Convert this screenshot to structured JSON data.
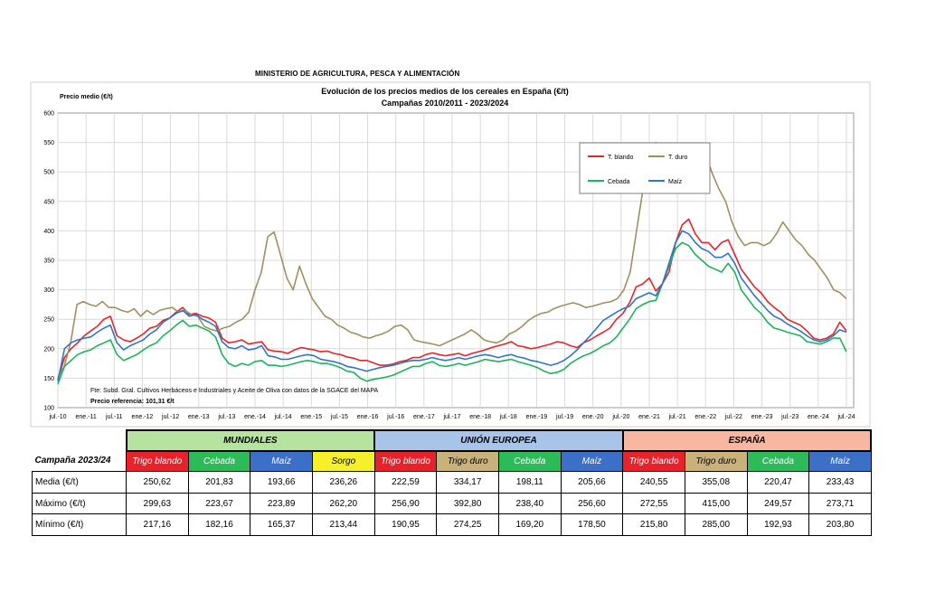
{
  "header": {
    "ministry": "MINISTERIO DE AGRICULTURA, PESCA Y ALIMENTACIÓN"
  },
  "chart_data": {
    "type": "line",
    "title": "Evolución de los precios medios de los cereales en España (€/t)",
    "subtitle": "Campañas 2010/2011 - 2023/2024",
    "ylabel": "Precio medio (€/t)",
    "ylim": [
      100,
      600
    ],
    "yticks": [
      100,
      150,
      200,
      250,
      300,
      350,
      400,
      450,
      500,
      550,
      600
    ],
    "xticks": [
      "jul.-10",
      "ene.-11",
      "jul.-11",
      "ene.-12",
      "jul.-12",
      "ene.-13",
      "jul.-13",
      "ene.-14",
      "jul.-14",
      "ene.-15",
      "jul.-15",
      "ene.-16",
      "jul.-16",
      "ene.-17",
      "jul.-17",
      "ene.-18",
      "jul.-18",
      "ene.-19",
      "jul.-19",
      "ene.-20",
      "jul.-20",
      "ene.-21",
      "jul.-21",
      "ene.-22",
      "jul.-22",
      "ene.-23",
      "jul.-23",
      "ene.-24",
      "jul.-24"
    ],
    "grid": true,
    "legend": "top-right",
    "source_note": "Fte: Subd. Gral. Cultivos Herbáceos e Industriales y Aceite de Oliva con datos de la SGACE del MAPA",
    "reference_note": "Precio referencia: 101,31 €/t",
    "series": [
      {
        "name": "T. blando",
        "color": "#e3262a",
        "values": [
          148,
          185,
          200,
          210,
          222,
          230,
          238,
          250,
          255,
          222,
          215,
          212,
          218,
          225,
          235,
          238,
          248,
          252,
          262,
          270,
          258,
          260,
          255,
          252,
          245,
          218,
          210,
          212,
          215,
          208,
          210,
          212,
          198,
          196,
          195,
          192,
          198,
          202,
          200,
          198,
          195,
          196,
          192,
          190,
          186,
          184,
          180,
          180,
          176,
          172,
          172,
          174,
          178,
          180,
          185,
          185,
          190,
          193,
          190,
          188,
          190,
          192,
          188,
          192,
          195,
          198,
          202,
          205,
          208,
          212,
          205,
          203,
          200,
          202,
          205,
          208,
          212,
          210,
          205,
          202,
          210,
          215,
          222,
          228,
          235,
          250,
          260,
          278,
          305,
          310,
          320,
          298,
          310,
          330,
          380,
          410,
          420,
          395,
          380,
          380,
          368,
          380,
          385,
          360,
          335,
          320,
          305,
          295,
          280,
          270,
          262,
          250,
          245,
          240,
          230,
          218,
          215,
          218,
          225,
          245,
          230
        ]
      },
      {
        "name": "T. duro",
        "color": "#a09060",
        "values": [
          150,
          170,
          210,
          275,
          280,
          275,
          272,
          280,
          270,
          270,
          265,
          262,
          268,
          255,
          265,
          258,
          265,
          268,
          270,
          262,
          265,
          258,
          255,
          238,
          233,
          230,
          235,
          238,
          245,
          250,
          262,
          300,
          330,
          390,
          398,
          360,
          320,
          300,
          340,
          310,
          285,
          270,
          255,
          250,
          240,
          235,
          228,
          225,
          220,
          218,
          222,
          225,
          230,
          238,
          240,
          232,
          215,
          212,
          210,
          208,
          205,
          210,
          215,
          220,
          225,
          232,
          225,
          215,
          212,
          210,
          215,
          225,
          230,
          238,
          248,
          255,
          260,
          262,
          268,
          272,
          275,
          278,
          275,
          270,
          272,
          275,
          278,
          280,
          285,
          300,
          330,
          400,
          470,
          540,
          550,
          540,
          530,
          520,
          515,
          518,
          528,
          535,
          525,
          495,
          470,
          450,
          415,
          390,
          375,
          380,
          380,
          375,
          380,
          395,
          415,
          400,
          385,
          375,
          360,
          350,
          335,
          320,
          300,
          295,
          285
        ]
      },
      {
        "name": "Cebada",
        "color": "#1db35a",
        "values": [
          140,
          170,
          180,
          190,
          195,
          198,
          205,
          210,
          215,
          190,
          180,
          185,
          190,
          198,
          205,
          210,
          222,
          230,
          240,
          248,
          238,
          240,
          235,
          230,
          220,
          190,
          175,
          170,
          175,
          172,
          178,
          180,
          172,
          172,
          170,
          172,
          175,
          178,
          180,
          178,
          175,
          175,
          172,
          168,
          162,
          160,
          150,
          145,
          148,
          150,
          152,
          155,
          160,
          165,
          170,
          170,
          175,
          178,
          172,
          170,
          172,
          175,
          172,
          175,
          178,
          182,
          180,
          178,
          180,
          182,
          178,
          175,
          172,
          168,
          162,
          158,
          160,
          165,
          175,
          182,
          188,
          192,
          198,
          205,
          210,
          220,
          235,
          250,
          268,
          275,
          280,
          282,
          310,
          340,
          370,
          380,
          375,
          360,
          350,
          340,
          335,
          330,
          345,
          330,
          300,
          285,
          270,
          260,
          245,
          235,
          232,
          228,
          225,
          222,
          212,
          210,
          208,
          212,
          218,
          218,
          195
        ]
      },
      {
        "name": "Maíz",
        "color": "#2f76c8",
        "values": [
          145,
          200,
          210,
          215,
          218,
          220,
          228,
          235,
          240,
          210,
          198,
          205,
          210,
          215,
          225,
          232,
          245,
          252,
          260,
          265,
          255,
          258,
          250,
          245,
          238,
          212,
          202,
          200,
          205,
          198,
          200,
          205,
          188,
          186,
          182,
          182,
          185,
          188,
          190,
          188,
          182,
          180,
          178,
          175,
          170,
          168,
          165,
          162,
          165,
          168,
          170,
          172,
          175,
          178,
          180,
          180,
          182,
          185,
          182,
          180,
          182,
          185,
          182,
          185,
          188,
          190,
          188,
          185,
          188,
          190,
          186,
          184,
          180,
          178,
          175,
          172,
          175,
          180,
          188,
          198,
          210,
          222,
          235,
          248,
          255,
          262,
          268,
          272,
          285,
          290,
          295,
          290,
          310,
          345,
          380,
          400,
          395,
          380,
          370,
          365,
          355,
          355,
          362,
          345,
          320,
          305,
          290,
          278,
          265,
          255,
          250,
          242,
          236,
          230,
          222,
          215,
          212,
          215,
          222,
          232,
          228
        ]
      }
    ]
  },
  "table": {
    "campaign_label": "Campaña 2023/24",
    "groups": [
      {
        "label": "MUNDIALES",
        "color": "#b7e3a0"
      },
      {
        "label": "UNIÓN EUROPEA",
        "color": "#a8c4e8"
      },
      {
        "label": "ESPAÑA",
        "color": "#f7b7a0"
      }
    ],
    "columns": [
      {
        "label": "Trigo blando",
        "color": "#e8222a",
        "text": "#ffffff"
      },
      {
        "label": "Cebada",
        "color": "#2dbb5a",
        "text": "#ffffff"
      },
      {
        "label": "Maíz",
        "color": "#3b6fc8",
        "text": "#ffffff"
      },
      {
        "label": "Sorgo",
        "color": "#f5f02a",
        "text": "#000000"
      },
      {
        "label": "Trigo blando",
        "color": "#e8222a",
        "text": "#ffffff"
      },
      {
        "label": "Trigo duro",
        "color": "#c9b27a",
        "text": "#000000"
      },
      {
        "label": "Cebada",
        "color": "#2dbb5a",
        "text": "#ffffff"
      },
      {
        "label": "Maíz",
        "color": "#3b6fc8",
        "text": "#ffffff"
      },
      {
        "label": "Trigo blando",
        "color": "#e8222a",
        "text": "#ffffff"
      },
      {
        "label": "Trigo duro",
        "color": "#c9b27a",
        "text": "#000000"
      },
      {
        "label": "Cebada",
        "color": "#2dbb5a",
        "text": "#ffffff"
      },
      {
        "label": "Maíz",
        "color": "#3b6fc8",
        "text": "#ffffff"
      }
    ],
    "rows": [
      {
        "label": "Media (€/t)",
        "values": [
          "250,62",
          "201,83",
          "193,66",
          "236,26",
          "222,59",
          "334,17",
          "198,11",
          "205,66",
          "240,55",
          "355,08",
          "220,47",
          "233,43"
        ]
      },
      {
        "label": "Máximo (€/t)",
        "values": [
          "299,63",
          "223,67",
          "223,89",
          "262,20",
          "256,90",
          "392,80",
          "238,40",
          "256,60",
          "272,55",
          "415,00",
          "249,57",
          "273,71"
        ]
      },
      {
        "label": "Mínimo (€/t)",
        "values": [
          "217,16",
          "182,16",
          "165,37",
          "213,44",
          "190,95",
          "274,25",
          "169,20",
          "178,50",
          "215,80",
          "285,00",
          "192,93",
          "203,80"
        ]
      }
    ]
  }
}
